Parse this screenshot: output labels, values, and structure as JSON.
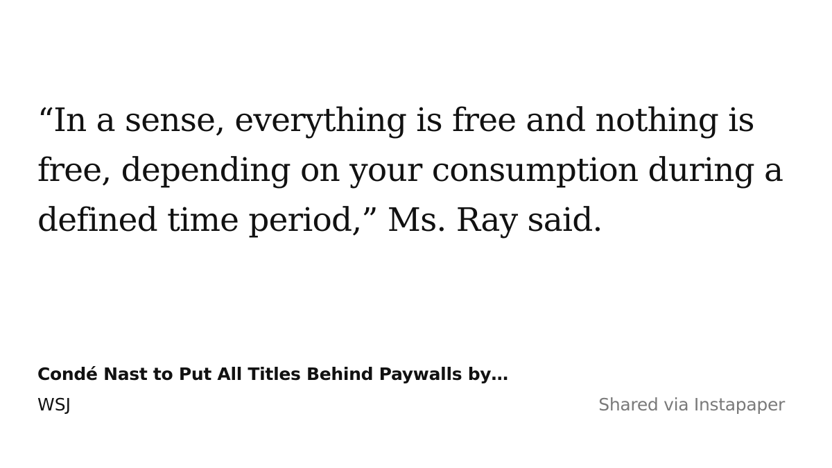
{
  "quote": {
    "lines": [
      "“In a sense, everything is free and nothing is",
      "free, depending on your consumption during a",
      "defined time period,” Ms. Ray said."
    ]
  },
  "article": {
    "title": "Condé Nast to Put All Titles Behind Paywalls by…",
    "source": "WSJ"
  },
  "footer": {
    "shared_via": "Shared via Instapaper"
  },
  "colors": {
    "background": "#ffffff",
    "text": "#111111",
    "muted": "#7a7a7a"
  }
}
